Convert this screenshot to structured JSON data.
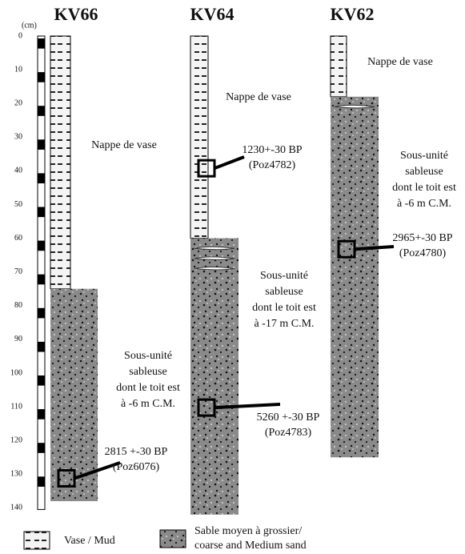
{
  "scale": {
    "unit": "(cm)",
    "ticks": [
      0,
      10,
      20,
      30,
      40,
      50,
      60,
      70,
      80,
      90,
      100,
      110,
      120,
      130,
      140
    ]
  },
  "columns": [
    {
      "title": "KV66",
      "mud_label": "Nappe de vase",
      "sand_label": [
        "Sous-unité",
        "sableuse",
        "dont le toit est",
        "à -6 m C.M."
      ],
      "dates": [
        {
          "age": "2815 +-30 BP",
          "code": "(Poz6076)"
        }
      ]
    },
    {
      "title": "KV64",
      "mud_label": "Nappe de vase",
      "sand_label": [
        "Sous-unité",
        "sableuse",
        "dont le toit est",
        "à -17 m C.M."
      ],
      "dates": [
        {
          "age": "1230+-30 BP",
          "code": "(Poz4782)"
        },
        {
          "age": "5260 +-30 BP",
          "code": "(Poz4783)"
        }
      ]
    },
    {
      "title": "KV62",
      "mud_label": "Nappe de vase",
      "sand_label": [
        "Sous-unité",
        "sableuse",
        "dont le toit est",
        "à -6 m C.M."
      ],
      "dates": [
        {
          "age": "2965+-30 BP",
          "code": "(Poz4780)"
        }
      ]
    }
  ],
  "legend": {
    "mud": "Vase / Mud",
    "sand": [
      "Sable moyen à grossier/",
      "coarse and Medium sand"
    ]
  }
}
